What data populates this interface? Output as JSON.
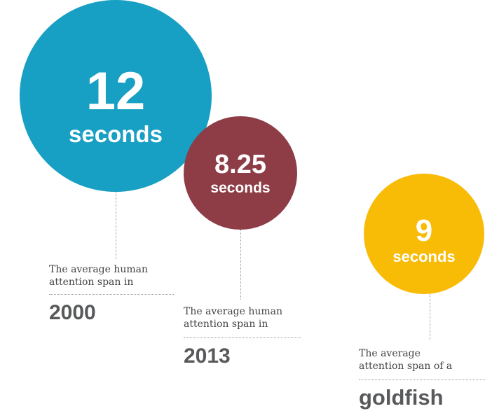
{
  "chart_data": {
    "type": "bubble",
    "title": "",
    "unit": "seconds",
    "items": [
      {
        "value": "12",
        "unit": "seconds",
        "caption": [
          "The average human",
          "attention span in"
        ],
        "label": "2000",
        "color": "#189fc4"
      },
      {
        "value": "8.25",
        "unit": "seconds",
        "caption": [
          "The average human",
          "attention span in"
        ],
        "label": "2013",
        "color": "#8e3d47"
      },
      {
        "value": "9",
        "unit": "seconds",
        "caption": [
          "The average",
          "attention span of a"
        ],
        "label": "goldfish",
        "color": "#f8bb06"
      }
    ]
  }
}
